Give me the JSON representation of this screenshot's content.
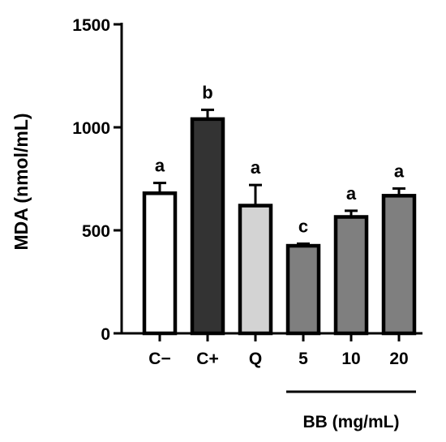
{
  "chart_data": {
    "type": "bar",
    "title": "",
    "xlabel": "",
    "ylabel": "MDA (nmol/mL)",
    "ylim": [
      0,
      1500
    ],
    "yticks": [
      0,
      500,
      1000,
      1500
    ],
    "grid": false,
    "categories": [
      "C−",
      "C+",
      "Q",
      "5",
      "10",
      "20"
    ],
    "values": [
      680,
      1040,
      620,
      425,
      565,
      668
    ],
    "errors": [
      50,
      45,
      100,
      10,
      30,
      35
    ],
    "significance_letters": [
      "a",
      "b",
      "a",
      "c",
      "a",
      "a"
    ],
    "bar_colors": [
      "#ffffff",
      "#333333",
      "#d3d3d3",
      "#7f7f7f",
      "#7f7f7f",
      "#7f7f7f"
    ],
    "group_label": "BB (mg/mL)",
    "group_categories": [
      "5",
      "10",
      "20"
    ]
  }
}
